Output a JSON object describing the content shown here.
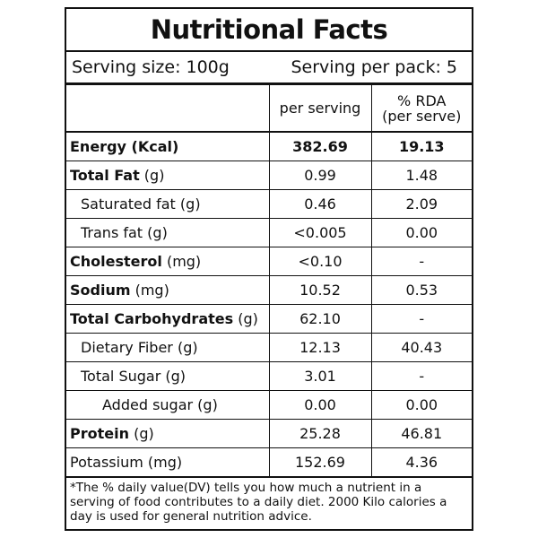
{
  "title": "Nutritional Facts",
  "serving_size": "Serving size: 100g",
  "serving_per_pack": "Serving per pack: 5",
  "columns": {
    "per_serving": "per serving",
    "rda_line1": "% RDA",
    "rda_line2": "(per serve)"
  },
  "rows": [
    {
      "name": "Energy (Kcal)",
      "unit": "",
      "per_serving": "382.69",
      "rda": "19.13"
    },
    {
      "name": "Total Fat",
      "unit": " (g)",
      "per_serving": "0.99",
      "rda": "1.48"
    },
    {
      "name": "Saturated fat (g)",
      "unit": "",
      "per_serving": "0.46",
      "rda": "2.09"
    },
    {
      "name": "Trans fat (g)",
      "unit": "",
      "per_serving": "<0.005",
      "rda": "0.00"
    },
    {
      "name": "Cholesterol",
      "unit": " (mg)",
      "per_serving": "<0.10",
      "rda": "-"
    },
    {
      "name": "Sodium",
      "unit": " (mg)",
      "per_serving": "10.52",
      "rda": "0.53"
    },
    {
      "name": "Total Carbohydrates",
      "unit": " (g)",
      "per_serving": "62.10",
      "rda": "-"
    },
    {
      "name": "Dietary Fiber (g)",
      "unit": "",
      "per_serving": "12.13",
      "rda": "40.43"
    },
    {
      "name": "Total Sugar (g)",
      "unit": "",
      "per_serving": "3.01",
      "rda": "-"
    },
    {
      "name": "Added sugar (g)",
      "unit": "",
      "per_serving": "0.00",
      "rda": "0.00"
    },
    {
      "name": "Protein",
      "unit": " (g)",
      "per_serving": "25.28",
      "rda": "46.81"
    },
    {
      "name": "Potassium (mg)",
      "unit": "",
      "per_serving": "152.69",
      "rda": "4.36"
    }
  ],
  "footnote": "*The % daily value(DV) tells you how much a nutrient in a serving of food contributes to a daily diet. 2000 Kilo calories a day is used for general nutrition advice."
}
